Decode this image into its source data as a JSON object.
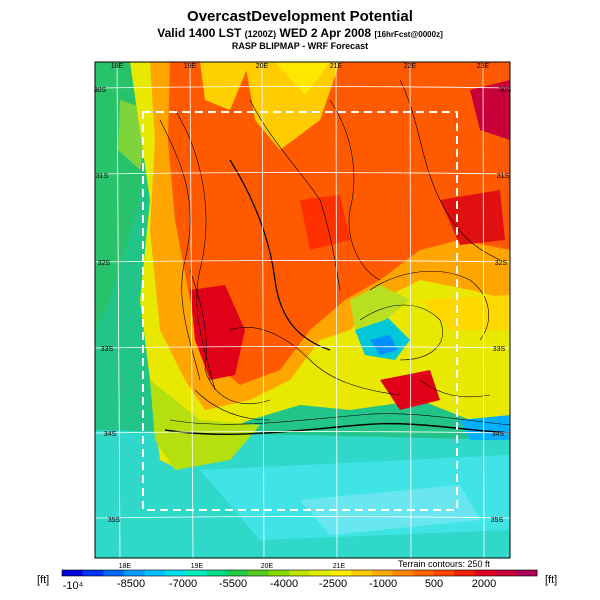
{
  "title": "OvercastDevelopment Potential",
  "subtitle_main": "Valid 1400 LST",
  "subtitle_small1": "(1200Z)",
  "subtitle_date": "WED 2 Apr 2008",
  "subtitle_small2": "[16hrFcst@0000z]",
  "subtitle2": "RASP BLIPMAP - WRF Forecast",
  "lon_labels": [
    "18E",
    "19E",
    "20E",
    "21E",
    "22E",
    "23E"
  ],
  "lat_labels": [
    "30S",
    "31S",
    "32S",
    "33S",
    "34S",
    "35S"
  ],
  "terrain_note": "Terrain contours: 250 ft",
  "colorbar": {
    "unit_left": "[ft]",
    "unit_right": "[ft]",
    "tick_labels": [
      "-10⁴",
      "-8500",
      "-7000",
      "-5500",
      "-4000",
      "-2500",
      "-1000",
      "500",
      "2000"
    ],
    "colors": [
      "#0000dd",
      "#0033ff",
      "#0066ff",
      "#0099ff",
      "#00c0ff",
      "#00e0ee",
      "#00eebb",
      "#00dd88",
      "#22cc44",
      "#55cc22",
      "#88d800",
      "#bbe400",
      "#ddee00",
      "#ffee00",
      "#ffcc00",
      "#ffaa00",
      "#ff8800",
      "#ff6600",
      "#ff4400",
      "#ee2200",
      "#dd0022",
      "#c8003a",
      "#aa0055"
    ]
  }
}
